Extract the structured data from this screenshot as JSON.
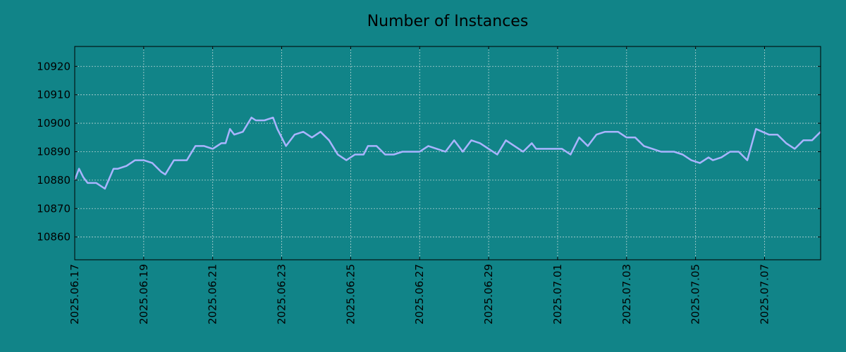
{
  "chart_data": {
    "type": "line",
    "title": "Number of Instances",
    "xlabel": "",
    "ylabel": "",
    "x_range": [
      "2025-06-17",
      "2025-07-08 15:00"
    ],
    "ylim": [
      10852,
      10927
    ],
    "yticks": [
      10860,
      10870,
      10880,
      10890,
      10900,
      10910,
      10920
    ],
    "xticks": [
      "2025.06.17",
      "2025.06.19",
      "2025.06.21",
      "2025.06.23",
      "2025.06.25",
      "2025.06.27",
      "2025.06.29",
      "2025.07.01",
      "2025.07.03",
      "2025.07.05",
      "2025.07.07"
    ],
    "grid": true,
    "colors": {
      "background": "#118488",
      "line": "#a9b4ff",
      "grid": "#b8d4d4",
      "axis": "#000000"
    },
    "series": [
      {
        "points": [
          [
            "2025-06-17 00:00",
            10880
          ],
          [
            "2025-06-17 03:00",
            10884
          ],
          [
            "2025-06-17 06:00",
            10881
          ],
          [
            "2025-06-17 09:00",
            10879
          ],
          [
            "2025-06-17 15:00",
            10879
          ],
          [
            "2025-06-17 21:00",
            10877
          ],
          [
            "2025-06-18 03:00",
            10884
          ],
          [
            "2025-06-18 06:00",
            10884
          ],
          [
            "2025-06-18 12:00",
            10885
          ],
          [
            "2025-06-18 18:00",
            10887
          ],
          [
            "2025-06-19 00:00",
            10887
          ],
          [
            "2025-06-19 06:00",
            10886
          ],
          [
            "2025-06-19 12:00",
            10883
          ],
          [
            "2025-06-19 15:00",
            10882
          ],
          [
            "2025-06-19 21:00",
            10887
          ],
          [
            "2025-06-20 06:00",
            10887
          ],
          [
            "2025-06-20 12:00",
            10892
          ],
          [
            "2025-06-20 18:00",
            10892
          ],
          [
            "2025-06-21 00:00",
            10891
          ],
          [
            "2025-06-21 06:00",
            10893
          ],
          [
            "2025-06-21 09:00",
            10893
          ],
          [
            "2025-06-21 12:00",
            10898
          ],
          [
            "2025-06-21 15:00",
            10896
          ],
          [
            "2025-06-21 21:00",
            10897
          ],
          [
            "2025-06-22 03:00",
            10902
          ],
          [
            "2025-06-22 06:00",
            10901
          ],
          [
            "2025-06-22 12:00",
            10901
          ],
          [
            "2025-06-22 18:00",
            10902
          ],
          [
            "2025-06-22 21:00",
            10898
          ],
          [
            "2025-06-23 03:00",
            10892
          ],
          [
            "2025-06-23 09:00",
            10896
          ],
          [
            "2025-06-23 15:00",
            10897
          ],
          [
            "2025-06-23 21:00",
            10895
          ],
          [
            "2025-06-24 03:00",
            10897
          ],
          [
            "2025-06-24 09:00",
            10894
          ],
          [
            "2025-06-24 15:00",
            10889
          ],
          [
            "2025-06-24 21:00",
            10887
          ],
          [
            "2025-06-25 03:00",
            10889
          ],
          [
            "2025-06-25 09:00",
            10889
          ],
          [
            "2025-06-25 12:00",
            10892
          ],
          [
            "2025-06-25 18:00",
            10892
          ],
          [
            "2025-06-26 00:00",
            10889
          ],
          [
            "2025-06-26 06:00",
            10889
          ],
          [
            "2025-06-26 12:00",
            10890
          ],
          [
            "2025-06-26 18:00",
            10890
          ],
          [
            "2025-06-27 00:00",
            10890
          ],
          [
            "2025-06-27 06:00",
            10892
          ],
          [
            "2025-06-27 12:00",
            10891
          ],
          [
            "2025-06-27 18:00",
            10890
          ],
          [
            "2025-06-28 00:00",
            10894
          ],
          [
            "2025-06-28 06:00",
            10890
          ],
          [
            "2025-06-28 12:00",
            10894
          ],
          [
            "2025-06-28 18:00",
            10893
          ],
          [
            "2025-06-29 00:00",
            10891
          ],
          [
            "2025-06-29 06:00",
            10889
          ],
          [
            "2025-06-29 12:00",
            10894
          ],
          [
            "2025-06-29 18:00",
            10892
          ],
          [
            "2025-06-30 00:00",
            10890
          ],
          [
            "2025-06-30 06:00",
            10893
          ],
          [
            "2025-06-30 09:00",
            10891
          ],
          [
            "2025-06-30 15:00",
            10891
          ],
          [
            "2025-07-01 03:00",
            10891
          ],
          [
            "2025-07-01 09:00",
            10889
          ],
          [
            "2025-07-01 15:00",
            10895
          ],
          [
            "2025-07-01 21:00",
            10892
          ],
          [
            "2025-07-02 03:00",
            10896
          ],
          [
            "2025-07-02 09:00",
            10897
          ],
          [
            "2025-07-02 18:00",
            10897
          ],
          [
            "2025-07-03 00:00",
            10895
          ],
          [
            "2025-07-03 06:00",
            10895
          ],
          [
            "2025-07-03 12:00",
            10892
          ],
          [
            "2025-07-03 18:00",
            10891
          ],
          [
            "2025-07-04 00:00",
            10890
          ],
          [
            "2025-07-04 09:00",
            10890
          ],
          [
            "2025-07-04 15:00",
            10889
          ],
          [
            "2025-07-04 21:00",
            10887
          ],
          [
            "2025-07-05 03:00",
            10886
          ],
          [
            "2025-07-05 09:00",
            10888
          ],
          [
            "2025-07-05 12:00",
            10887
          ],
          [
            "2025-07-05 18:00",
            10888
          ],
          [
            "2025-07-06 00:00",
            10890
          ],
          [
            "2025-07-06 06:00",
            10890
          ],
          [
            "2025-07-06 12:00",
            10887
          ],
          [
            "2025-07-06 18:00",
            10898
          ],
          [
            "2025-07-07 03:00",
            10896
          ],
          [
            "2025-07-07 09:00",
            10896
          ],
          [
            "2025-07-07 15:00",
            10893
          ],
          [
            "2025-07-07 21:00",
            10891
          ],
          [
            "2025-07-08 03:00",
            10894
          ],
          [
            "2025-07-08 09:00",
            10894
          ],
          [
            "2025-07-08 15:00",
            10897
          ]
        ]
      }
    ]
  }
}
